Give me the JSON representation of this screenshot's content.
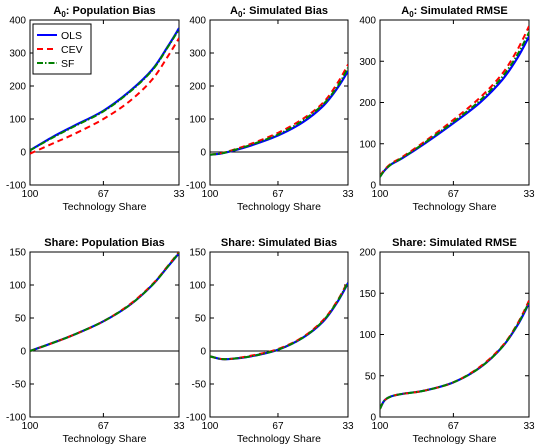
{
  "figure": {
    "background": "#ffffff"
  },
  "series_styles": {
    "OLS": {
      "color": "#0000ff",
      "dash": ""
    },
    "CEV": {
      "color": "#ff0000",
      "dash": "6,4"
    },
    "SF": {
      "color": "#007f00",
      "dash": "6,2,1.5,2"
    }
  },
  "legend": {
    "placement": "top-left",
    "entries": [
      "OLS",
      "CEV",
      "SF"
    ]
  },
  "chart_data": [
    {
      "type": "line",
      "title": "A0: Population Bias",
      "title_main": "A",
      "title_sub": "0",
      "title_rest": ": Population Bias",
      "xlabel": "Technology Share",
      "ylabel": "",
      "x_ticks": [
        "100",
        "67",
        "33"
      ],
      "x_reversed": true,
      "xlim": [
        100,
        33
      ],
      "ylim": [
        -100,
        400
      ],
      "y_ticks": [
        -100,
        0,
        100,
        200,
        300,
        400
      ],
      "zero_line": true,
      "show_legend": true,
      "x": [
        100,
        90,
        80,
        67,
        55,
        45,
        38,
        33
      ],
      "series": [
        {
          "name": "OLS",
          "values": [
            5,
            45,
            80,
            125,
            185,
            250,
            320,
            375
          ]
        },
        {
          "name": "CEV",
          "values": [
            -5,
            25,
            55,
            100,
            155,
            220,
            290,
            345
          ]
        },
        {
          "name": "SF",
          "values": [
            5,
            43,
            78,
            123,
            183,
            248,
            318,
            372
          ]
        }
      ]
    },
    {
      "type": "line",
      "title": "A0: Simulated Bias",
      "title_main": "A",
      "title_sub": "0",
      "title_rest": ": Simulated Bias",
      "xlabel": "Technology Share",
      "ylabel": "",
      "x_ticks": [
        "100",
        "67",
        "33"
      ],
      "x_reversed": true,
      "xlim": [
        100,
        33
      ],
      "ylim": [
        -100,
        400
      ],
      "y_ticks": [
        -100,
        0,
        100,
        200,
        300,
        400
      ],
      "zero_line": true,
      "show_legend": false,
      "x": [
        100,
        95,
        90,
        80,
        67,
        55,
        45,
        38,
        33
      ],
      "series": [
        {
          "name": "OLS",
          "values": [
            -8,
            -5,
            2,
            20,
            50,
            90,
            140,
            195,
            245
          ]
        },
        {
          "name": "CEV",
          "values": [
            -8,
            -4,
            4,
            25,
            58,
            100,
            150,
            210,
            265
          ]
        },
        {
          "name": "SF",
          "values": [
            -8,
            -5,
            3,
            22,
            53,
            95,
            145,
            200,
            255
          ]
        }
      ]
    },
    {
      "type": "line",
      "title": "A0: Simulated RMSE",
      "title_main": "A",
      "title_sub": "0",
      "title_rest": ": Simulated RMSE",
      "xlabel": "Technology Share",
      "ylabel": "",
      "x_ticks": [
        "100",
        "67",
        "33"
      ],
      "x_reversed": true,
      "xlim": [
        100,
        33
      ],
      "ylim": [
        0,
        400
      ],
      "y_ticks": [
        0,
        100,
        200,
        300,
        400
      ],
      "zero_line": false,
      "show_legend": false,
      "x": [
        100,
        98,
        95,
        90,
        80,
        67,
        55,
        45,
        38,
        33
      ],
      "series": [
        {
          "name": "OLS",
          "values": [
            20,
            35,
            50,
            65,
            100,
            150,
            200,
            255,
            310,
            360
          ]
        },
        {
          "name": "CEV",
          "values": [
            22,
            37,
            52,
            68,
            105,
            158,
            212,
            270,
            330,
            385
          ]
        },
        {
          "name": "SF",
          "values": [
            20,
            35,
            50,
            66,
            102,
            153,
            205,
            262,
            318,
            370
          ]
        }
      ]
    },
    {
      "type": "line",
      "title": "Share: Population Bias",
      "title_main": "Share: Population Bias",
      "title_sub": "",
      "title_rest": "",
      "xlabel": "Technology Share",
      "ylabel": "",
      "x_ticks": [
        "100",
        "67",
        "33"
      ],
      "x_reversed": true,
      "xlim": [
        100,
        33
      ],
      "ylim": [
        -100,
        150
      ],
      "y_ticks": [
        -100,
        -50,
        0,
        50,
        100,
        150
      ],
      "zero_line": true,
      "show_legend": false,
      "x": [
        100,
        90,
        80,
        67,
        55,
        45,
        38,
        33
      ],
      "series": [
        {
          "name": "OLS",
          "values": [
            0,
            12,
            25,
            45,
            70,
            100,
            128,
            148
          ]
        },
        {
          "name": "CEV",
          "values": [
            0,
            12,
            25,
            45,
            71,
            101,
            129,
            150
          ]
        },
        {
          "name": "SF",
          "values": [
            0,
            12,
            25,
            45,
            70,
            100,
            128,
            149
          ]
        }
      ]
    },
    {
      "type": "line",
      "title": "Share: Simulated Bias",
      "title_main": "Share: Simulated Bias",
      "title_sub": "",
      "title_rest": "",
      "xlabel": "Technology Share",
      "ylabel": "",
      "x_ticks": [
        "100",
        "67",
        "33"
      ],
      "x_reversed": true,
      "xlim": [
        100,
        33
      ],
      "ylim": [
        -100,
        150
      ],
      "y_ticks": [
        -100,
        -50,
        0,
        50,
        100,
        150
      ],
      "zero_line": true,
      "show_legend": false,
      "x": [
        100,
        95,
        90,
        80,
        67,
        55,
        45,
        38,
        33
      ],
      "series": [
        {
          "name": "OLS",
          "values": [
            -8,
            -12,
            -12,
            -8,
            2,
            20,
            45,
            75,
            103
          ]
        },
        {
          "name": "CEV",
          "values": [
            -8,
            -12,
            -12,
            -7,
            3,
            21,
            47,
            77,
            106
          ]
        },
        {
          "name": "SF",
          "values": [
            -8,
            -12,
            -12,
            -8,
            2,
            20,
            46,
            76,
            104
          ]
        }
      ]
    },
    {
      "type": "line",
      "title": "Share: Simulated RMSE",
      "title_main": "Share: Simulated RMSE",
      "title_sub": "",
      "title_rest": "",
      "xlabel": "Technology Share",
      "ylabel": "",
      "x_ticks": [
        "100",
        "67",
        "33"
      ],
      "x_reversed": true,
      "xlim": [
        100,
        33
      ],
      "ylim": [
        0,
        200
      ],
      "y_ticks": [
        0,
        50,
        100,
        150,
        200
      ],
      "zero_line": false,
      "show_legend": false,
      "x": [
        100,
        98,
        95,
        90,
        80,
        67,
        55,
        45,
        38,
        33
      ],
      "series": [
        {
          "name": "OLS",
          "values": [
            10,
            20,
            25,
            28,
            32,
            42,
            60,
            85,
            112,
            138
          ]
        },
        {
          "name": "CEV",
          "values": [
            10,
            20,
            25,
            28,
            32,
            42,
            61,
            86,
            114,
            141
          ]
        },
        {
          "name": "SF",
          "values": [
            10,
            20,
            25,
            28,
            32,
            42,
            60,
            85,
            113,
            139
          ]
        }
      ]
    }
  ]
}
